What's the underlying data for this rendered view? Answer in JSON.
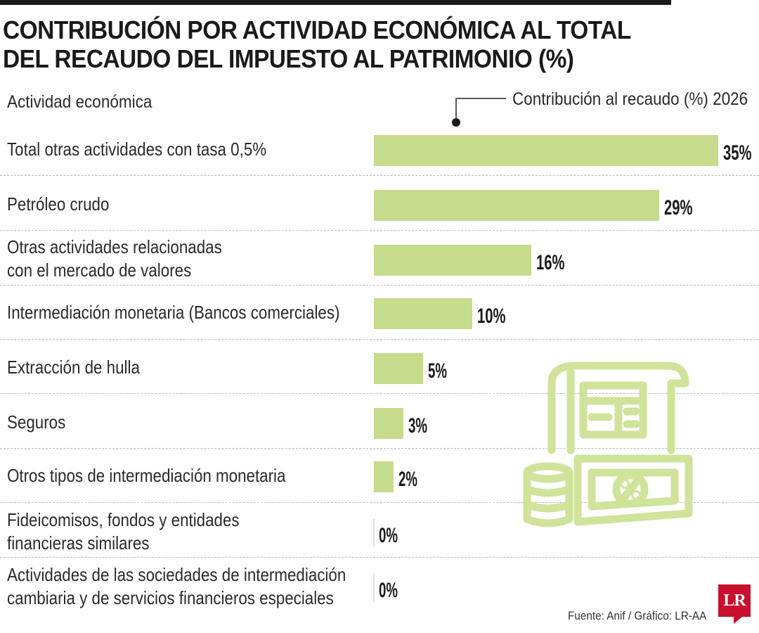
{
  "title_line1": "CONTRIBUCIÓN POR ACTIVIDAD ECONÓMICA AL TOTAL",
  "title_line2": "DEL RECAUDO DEL IMPUESTO AL PATRIMONIO (%)",
  "left_header": "Actividad económica",
  "right_header": "Contribución al recaudo (%) 2026",
  "footer": "Fuente: Anif / Gráfico: LR-AA",
  "logo_text": "LR",
  "colors": {
    "bar": "#c6db8c",
    "icon": "#cfe39a",
    "title": "#1a1a1a",
    "logo": "#c8102e"
  },
  "icon_name": "tax-receipt-money-icon",
  "chart_data": {
    "type": "bar",
    "orientation": "horizontal",
    "title": "CONTRIBUCIÓN POR ACTIVIDAD ECONÓMICA AL TOTAL DEL RECAUDO DEL IMPUESTO AL PATRIMONIO (%)",
    "xlabel": "Contribución al recaudo (%) 2026",
    "ylabel": "Actividad económica",
    "xlim": [
      0,
      35
    ],
    "unit": "%",
    "grid": false,
    "categories": [
      [
        "Total otras actividades con tasa 0,5%"
      ],
      [
        "Petróleo crudo"
      ],
      [
        "Otras actividades relacionadas",
        "con el mercado de valores"
      ],
      [
        "Intermediación monetaria (Bancos comerciales)"
      ],
      [
        "Extracción de hulla"
      ],
      [
        "Seguros"
      ],
      [
        "Otros tipos de intermediación monetaria"
      ],
      [
        "Fideicomisos, fondos y entidades",
        "financieras similares"
      ],
      [
        "Actividades de las sociedades de intermediación",
        "cambiaria y de servicios financieros especiales"
      ]
    ],
    "values": [
      35,
      29,
      16,
      10,
      5,
      3,
      2,
      0,
      0
    ],
    "value_labels": [
      "35%",
      "29%",
      "16%",
      "10%",
      "5%",
      "3%",
      "2%",
      "0%",
      "0%"
    ]
  }
}
